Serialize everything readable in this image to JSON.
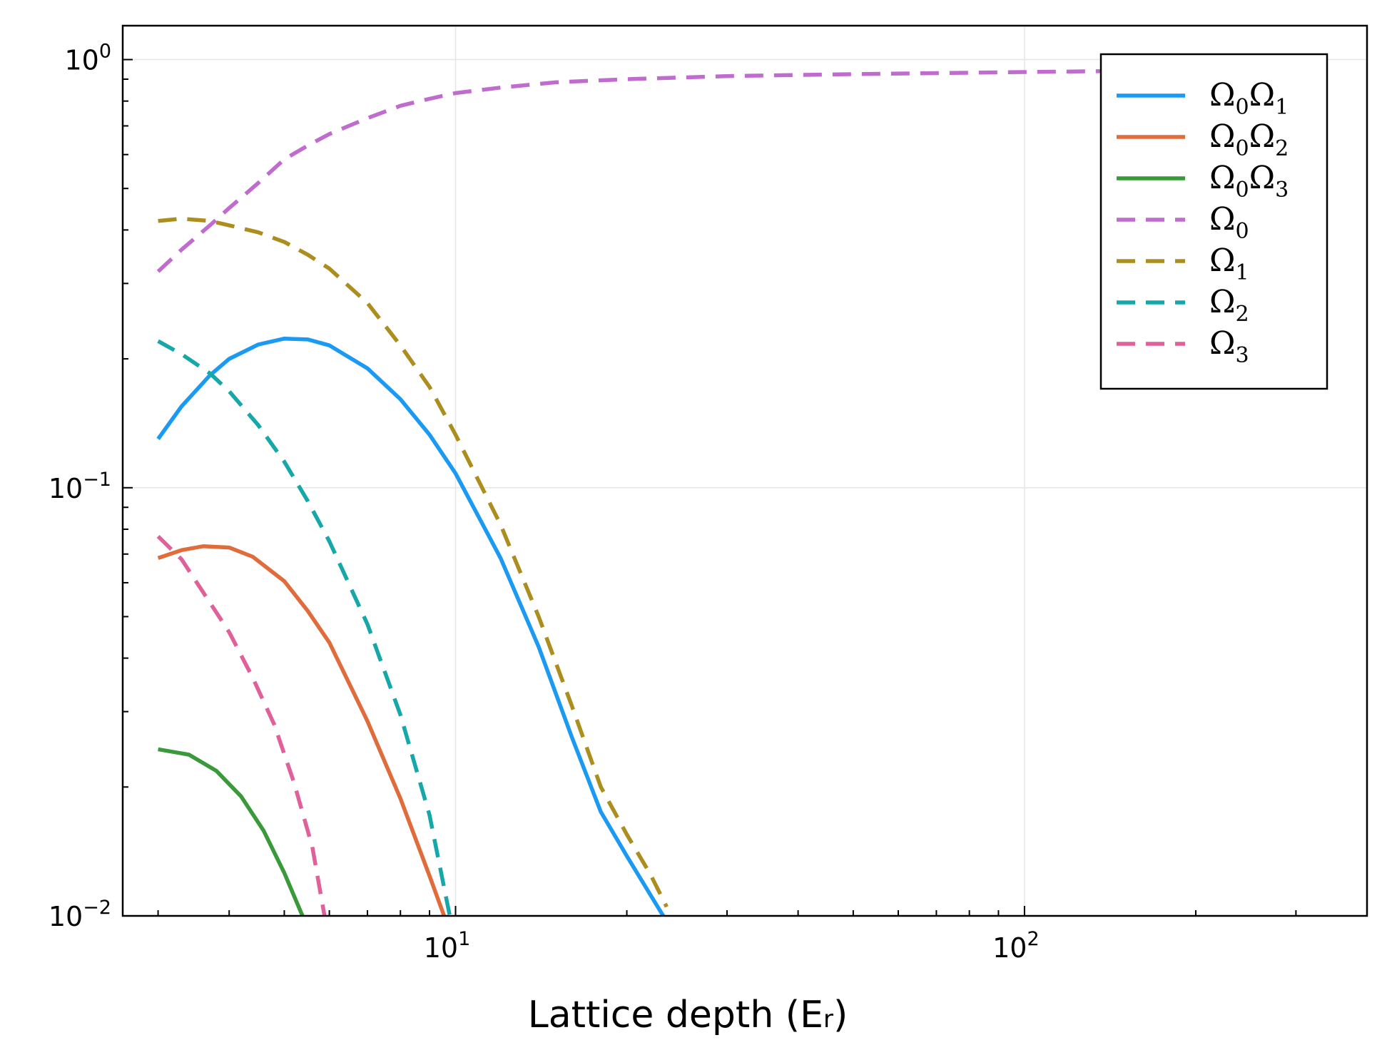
{
  "chart_data": {
    "type": "line",
    "title": "",
    "xlabel": "Lattice depth (E",
    "xlabel_sub": "r",
    "xlabel_close": ")",
    "ylabel": "",
    "x_scale": "log",
    "y_scale": "log",
    "xlim": [
      2.6,
      400
    ],
    "ylim": [
      0.01,
      1.2
    ],
    "grid": true,
    "legend_position": "top-right",
    "x_ticks": [
      {
        "value": 10,
        "base": "10",
        "exp": "1"
      },
      {
        "value": 100,
        "base": "10",
        "exp": "2"
      }
    ],
    "y_ticks": [
      {
        "value": 1,
        "base": "10",
        "exp": "0"
      },
      {
        "value": 0.1,
        "base": "10",
        "exp": "−1"
      },
      {
        "value": 0.01,
        "base": "10",
        "exp": "−2"
      }
    ],
    "series": [
      {
        "name": "Ω0Ω1",
        "name_main": "Ω",
        "name_sub1": "0",
        "name_main2": "Ω",
        "name_sub2": "1",
        "color": "#1a9af2",
        "dash": "solid",
        "x": [
          3,
          3.3,
          3.7,
          4,
          4.5,
          5,
          5.5,
          6,
          7,
          8,
          9,
          10,
          12,
          14,
          16,
          18,
          20,
          22,
          23.5
        ],
        "y": [
          0.13,
          0.155,
          0.183,
          0.2,
          0.216,
          0.223,
          0.222,
          0.215,
          0.19,
          0.161,
          0.133,
          0.108,
          0.0685,
          0.0425,
          0.0262,
          0.0175,
          0.0138,
          0.0112,
          0.0097
        ]
      },
      {
        "name": "Ω0Ω2",
        "name_main": "Ω",
        "name_sub1": "0",
        "name_main2": "Ω",
        "name_sub2": "2",
        "color": "#e06c3c",
        "dash": "solid",
        "x": [
          3,
          3.3,
          3.6,
          4,
          4.4,
          5,
          5.5,
          6,
          7,
          8,
          9,
          9.6
        ],
        "y": [
          0.0685,
          0.0715,
          0.073,
          0.0725,
          0.069,
          0.0605,
          0.0515,
          0.0435,
          0.0285,
          0.0188,
          0.0124,
          0.0098
        ]
      },
      {
        "name": "Ω0Ω3",
        "name_main": "Ω",
        "name_sub1": "0",
        "name_main2": "Ω",
        "name_sub2": "3",
        "color": "#3a9a3a",
        "dash": "solid",
        "x": [
          3,
          3.4,
          3.8,
          4.2,
          4.6,
          5,
          5.4
        ],
        "y": [
          0.0245,
          0.0238,
          0.0218,
          0.019,
          0.0158,
          0.0126,
          0.0099
        ]
      },
      {
        "name": "Ω0",
        "name_main": "Ω",
        "name_sub1": "0",
        "color": "#c06ccf",
        "dash": "dashed",
        "x": [
          3,
          3.3,
          3.7,
          4,
          4.5,
          5,
          5.5,
          6,
          7,
          8,
          9,
          10,
          12,
          15,
          20,
          30,
          50,
          100,
          200,
          300
        ],
        "y": [
          0.32,
          0.36,
          0.41,
          0.45,
          0.515,
          0.585,
          0.63,
          0.67,
          0.73,
          0.78,
          0.81,
          0.835,
          0.86,
          0.885,
          0.9,
          0.915,
          0.925,
          0.935,
          0.945,
          0.95
        ]
      },
      {
        "name": "Ω1",
        "name_main": "Ω",
        "name_sub1": "1",
        "color": "#ac8e1e",
        "dash": "dashed",
        "x": [
          3,
          3.3,
          3.7,
          4,
          4.5,
          5,
          5.5,
          6,
          7,
          8,
          9,
          10,
          12,
          14,
          16,
          18,
          20,
          22,
          23.5
        ],
        "y": [
          0.42,
          0.425,
          0.42,
          0.41,
          0.395,
          0.375,
          0.35,
          0.325,
          0.27,
          0.215,
          0.172,
          0.133,
          0.082,
          0.05,
          0.031,
          0.02,
          0.0155,
          0.0125,
          0.0105
        ]
      },
      {
        "name": "Ω2",
        "name_main": "Ω",
        "name_sub1": "2",
        "color": "#16a8a8",
        "dash": "dashed",
        "x": [
          3,
          3.3,
          3.7,
          4,
          4.5,
          5,
          5.5,
          6,
          7,
          8,
          9,
          9.8
        ],
        "y": [
          0.22,
          0.205,
          0.185,
          0.168,
          0.14,
          0.115,
          0.093,
          0.075,
          0.048,
          0.0295,
          0.0172,
          0.0098
        ]
      },
      {
        "name": "Ω3",
        "name_main": "Ω",
        "name_sub1": "3",
        "color": "#e0609a",
        "dash": "dashed",
        "x": [
          3,
          3.3,
          3.6,
          4,
          4.4,
          4.8,
          5.2,
          5.6,
          5.9
        ],
        "y": [
          0.077,
          0.068,
          0.057,
          0.046,
          0.036,
          0.028,
          0.0205,
          0.0145,
          0.0098
        ]
      }
    ]
  }
}
